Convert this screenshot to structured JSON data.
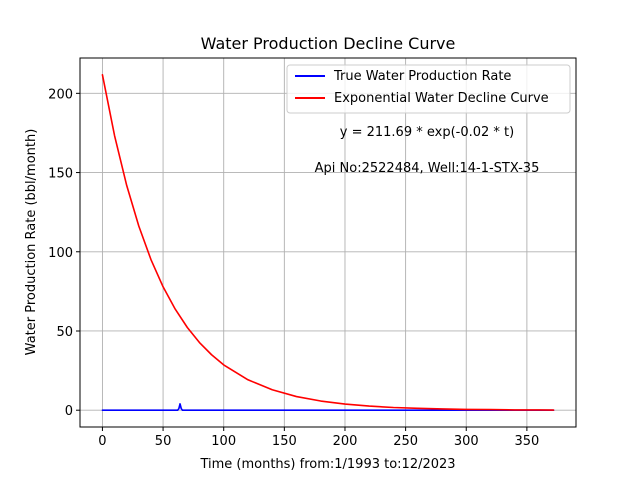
{
  "chart_data": {
    "type": "line",
    "title": "Water Production Decline Curve",
    "xlabel": "Time (months) from:1/1993 to:12/2023",
    "ylabel": "Water Production Rate (bbl/month)",
    "xlim": [
      -18.5,
      390.5
    ],
    "ylim": [
      -10.6,
      222.3
    ],
    "xticks": [
      0,
      50,
      100,
      150,
      200,
      250,
      300,
      350
    ],
    "yticks": [
      0,
      50,
      100,
      150,
      200
    ],
    "grid": true,
    "legend_position": "top-right",
    "series": [
      {
        "name": "True Water Production Rate",
        "color": "#0000ff",
        "x": [
          0,
          62,
          63,
          64,
          65,
          66,
          372
        ],
        "y": [
          0,
          0,
          1,
          4,
          1,
          0,
          0
        ]
      },
      {
        "name": "Exponential Water Decline Curve",
        "color": "#ff0000",
        "x": [
          0,
          10,
          20,
          30,
          40,
          50,
          60,
          70,
          80,
          90,
          100,
          120,
          140,
          160,
          180,
          200,
          220,
          240,
          260,
          280,
          300,
          320,
          340,
          360,
          372
        ],
        "y": [
          211.69,
          173.3,
          141.9,
          116.2,
          95.1,
          77.9,
          63.8,
          52.2,
          42.7,
          35.0,
          28.6,
          19.2,
          12.9,
          8.6,
          5.8,
          3.9,
          2.6,
          1.7,
          1.2,
          0.8,
          0.5,
          0.4,
          0.2,
          0.2,
          0.1
        ]
      }
    ],
    "annotations": [
      "y = 211.69 * exp(-0.02 * t)",
      "Api No:2522484, Well:14-1-STX-35"
    ]
  }
}
